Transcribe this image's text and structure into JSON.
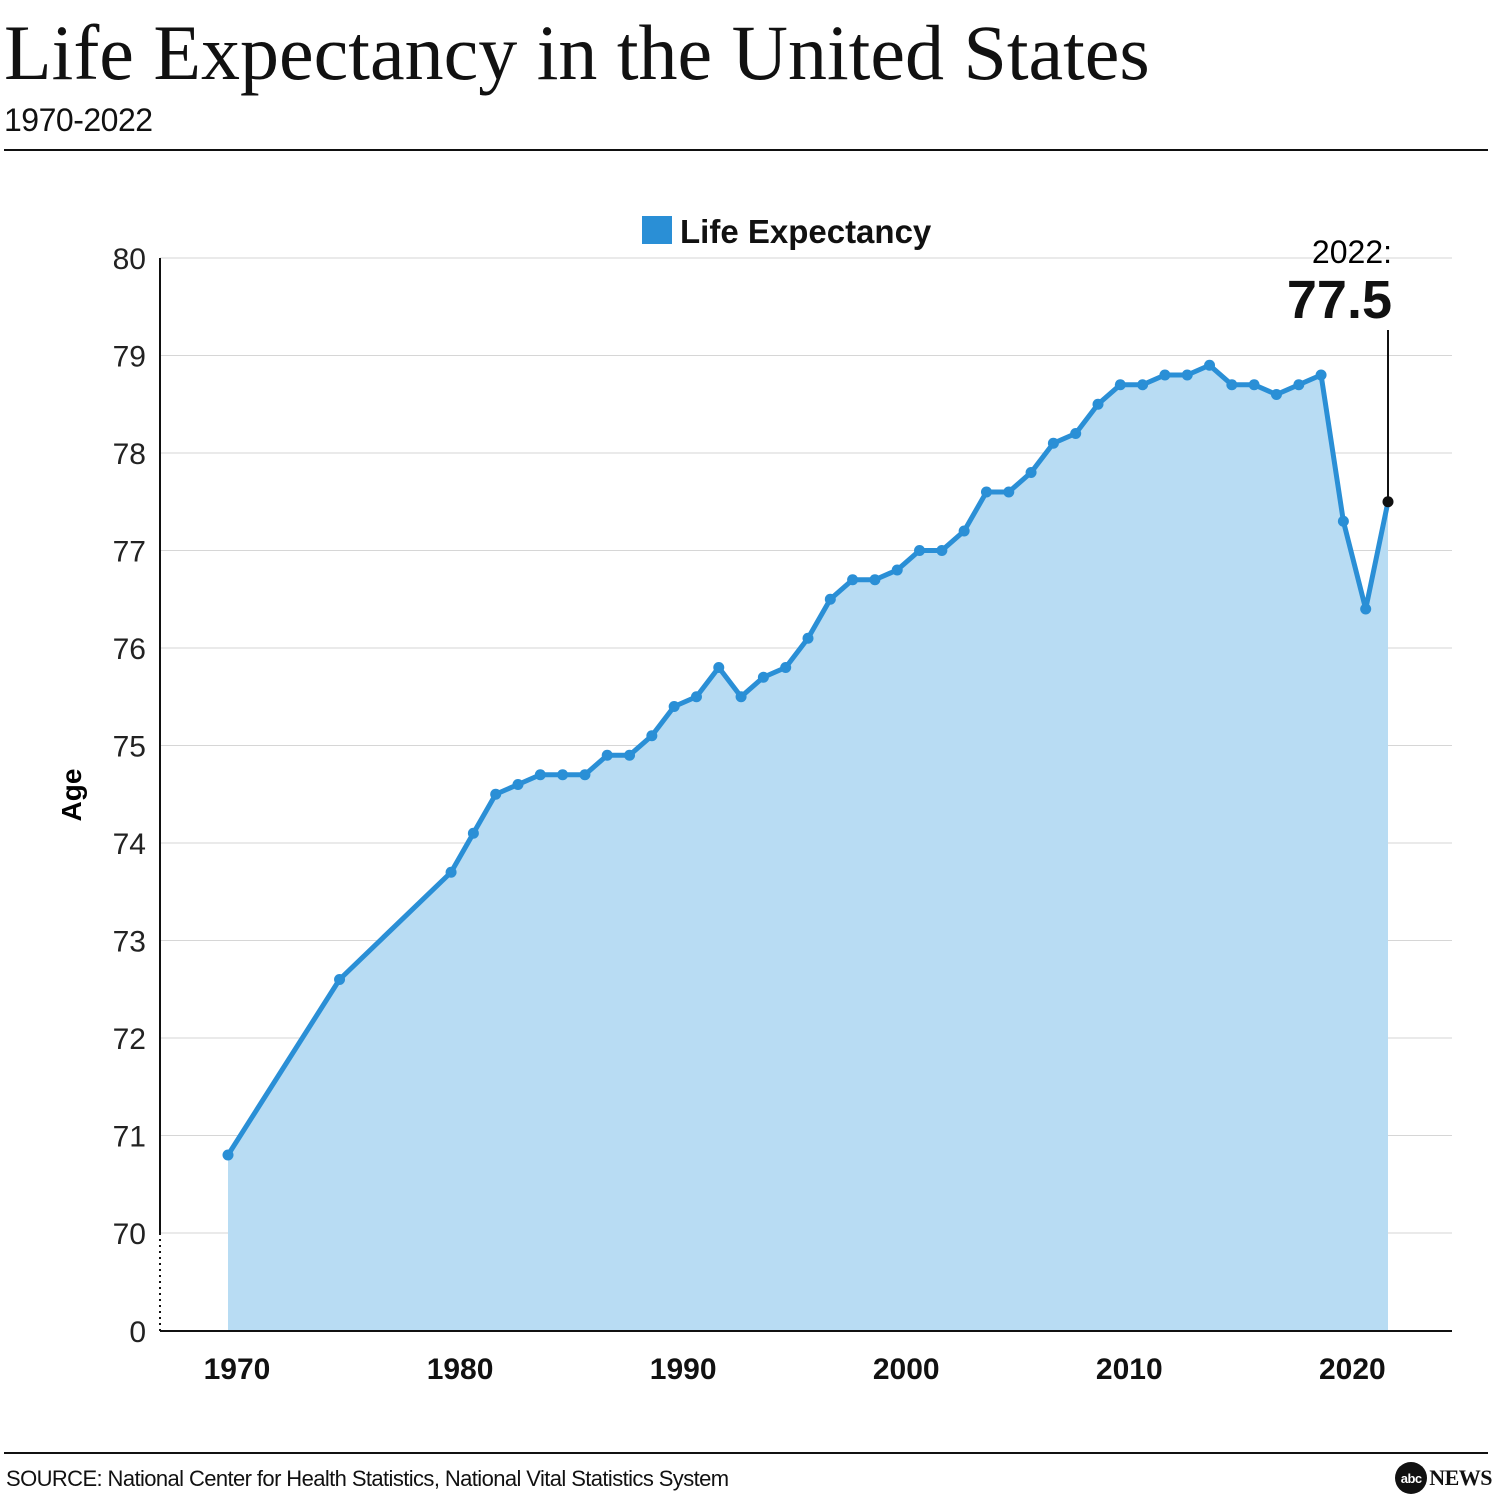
{
  "header": {
    "title": "Life Expectancy in the United States",
    "subtitle": "1970-2022"
  },
  "footer": {
    "source": "SOURCE: National Center for Health Statistics, National Vital Statistics System",
    "logo_text": "abc",
    "logo_news": "NEWS"
  },
  "chart_data": {
    "type": "area",
    "title": "Life Expectancy in the United States",
    "subtitle": "1970-2022",
    "ylabel": "Age",
    "xlabel": "",
    "y_ticks": [
      0,
      70,
      71,
      72,
      73,
      74,
      75,
      76,
      77,
      78,
      79,
      80
    ],
    "y_axis_break": "0 to 70",
    "ylim": [
      70,
      80
    ],
    "x_ticks": [
      1970,
      1980,
      1990,
      2000,
      2010,
      2020
    ],
    "grid": "horizontal",
    "legend": {
      "position": "top-center",
      "entries": [
        "Life Expectancy"
      ]
    },
    "colors": {
      "line": "#2a8fd6",
      "fill": "#b8dcf3",
      "legend": "#2a8fd6"
    },
    "annotation": {
      "label": "2022:",
      "value": "77.5",
      "year": 2022
    },
    "series": [
      {
        "name": "Life Expectancy",
        "x": [
          1970,
          1975,
          1980,
          1981,
          1982,
          1983,
          1984,
          1985,
          1986,
          1987,
          1988,
          1989,
          1990,
          1991,
          1992,
          1993,
          1994,
          1995,
          1996,
          1997,
          1998,
          1999,
          2000,
          2001,
          2002,
          2003,
          2004,
          2005,
          2006,
          2007,
          2008,
          2009,
          2010,
          2011,
          2012,
          2013,
          2014,
          2015,
          2016,
          2017,
          2018,
          2019,
          2020,
          2021,
          2022
        ],
        "values": [
          70.8,
          72.6,
          73.7,
          74.1,
          74.5,
          74.6,
          74.7,
          74.7,
          74.7,
          74.9,
          74.9,
          75.1,
          75.4,
          75.5,
          75.8,
          75.5,
          75.7,
          75.8,
          76.1,
          76.5,
          76.7,
          76.7,
          76.8,
          77.0,
          77.0,
          77.2,
          77.6,
          77.6,
          77.8,
          78.1,
          78.2,
          78.5,
          78.7,
          78.7,
          78.8,
          78.8,
          78.9,
          78.7,
          78.7,
          78.6,
          78.7,
          78.8,
          77.3,
          76.4,
          77.5
        ]
      }
    ]
  }
}
